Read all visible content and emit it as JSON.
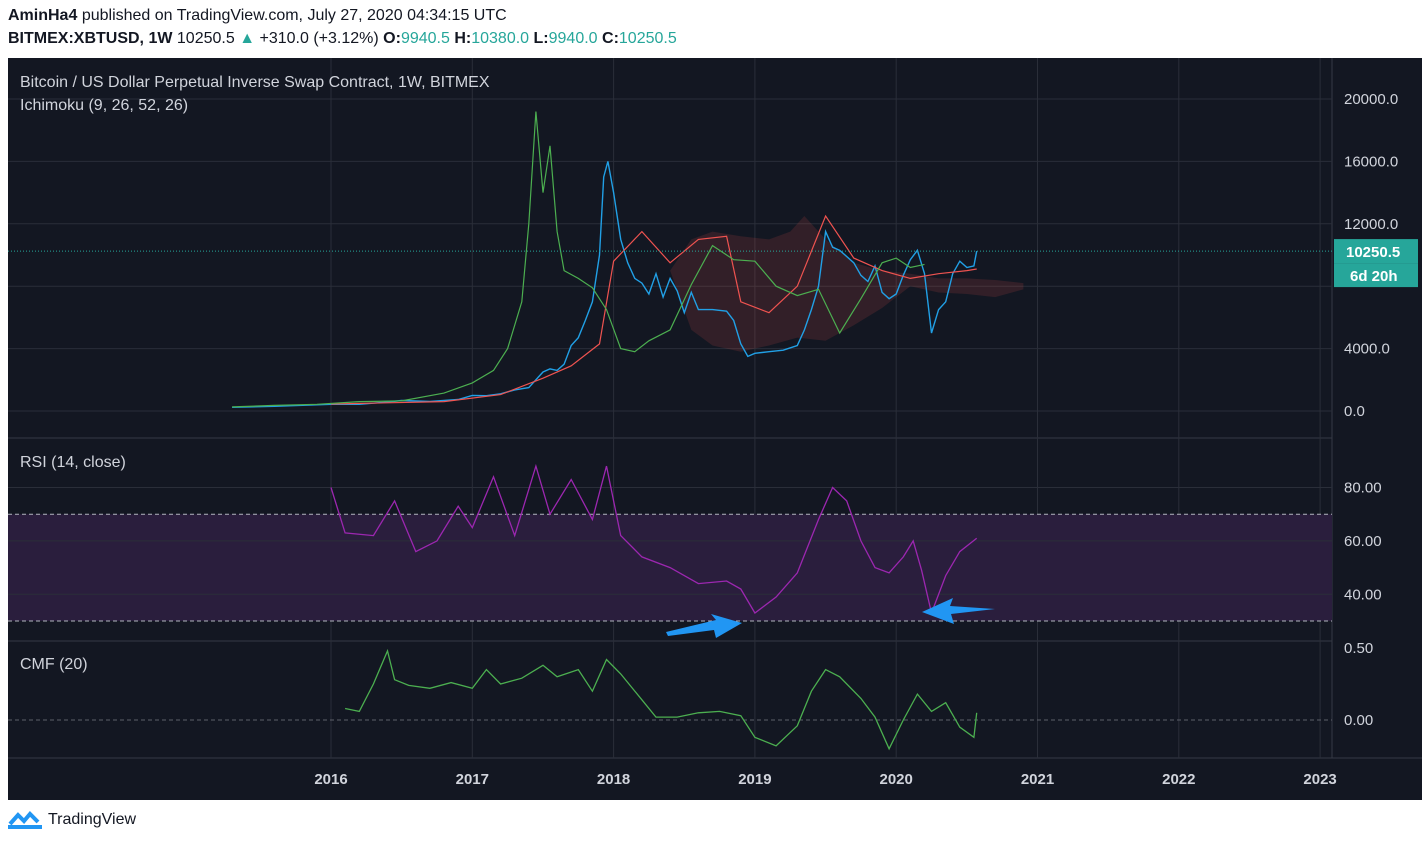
{
  "header": {
    "author": "AminHa4",
    "published": "published on TradingView.com, July 27, 2020 04:34:15 UTC",
    "symbol": "BITMEX:XBTUSD, 1W",
    "last": "10250.5",
    "change": "+310.0 (+3.12%)",
    "o_label": "O:",
    "o_val": "9940.5",
    "h_label": "H:",
    "h_val": "10380.0",
    "l_label": "L:",
    "l_val": "9940.0",
    "c_label": "C:",
    "c_val": "10250.5"
  },
  "chart": {
    "title": "Bitcoin / US Dollar Perpetual Inverse Swap Contract, 1W, BITMEX",
    "indicator": "Ichimoku (9, 26, 52, 26)",
    "price_badge": "10250.5",
    "time_badge": "6d 20h",
    "rsi_label": "RSI (14, close)",
    "cmf_label": "CMF (20)",
    "colors": {
      "bg": "#131722",
      "text": "#d1d4dc",
      "price": "#21a0e6",
      "tenkan": "#21a0e6",
      "kijun": "#ef5350",
      "chikou": "#4caf50",
      "rsi": "#9c27b0",
      "cmf": "#4caf50",
      "arrow": "#2196f3",
      "badge": "#26a69a"
    }
  },
  "chart_data": [
    {
      "type": "line",
      "name": "price",
      "x": [
        2015.3,
        2015.6,
        2015.9,
        2016.0,
        2016.2,
        2016.4,
        2016.5,
        2016.7,
        2016.9,
        2017.0,
        2017.1,
        2017.2,
        2017.3,
        2017.4,
        2017.5,
        2017.55,
        2017.6,
        2017.65,
        2017.7,
        2017.75,
        2017.8,
        2017.85,
        2017.9,
        2017.93,
        2017.96,
        2018.0,
        2018.05,
        2018.1,
        2018.15,
        2018.2,
        2018.25,
        2018.3,
        2018.35,
        2018.4,
        2018.45,
        2018.5,
        2018.55,
        2018.6,
        2018.7,
        2018.8,
        2018.85,
        2018.9,
        2018.95,
        2019.0,
        2019.1,
        2019.2,
        2019.3,
        2019.35,
        2019.4,
        2019.45,
        2019.5,
        2019.55,
        2019.6,
        2019.7,
        2019.75,
        2019.8,
        2019.85,
        2019.9,
        2019.95,
        2020.0,
        2020.05,
        2020.1,
        2020.15,
        2020.2,
        2020.25,
        2020.3,
        2020.35,
        2020.4,
        2020.45,
        2020.5,
        2020.55,
        2020.57
      ],
      "y": [
        240,
        300,
        400,
        430,
        430,
        580,
        670,
        610,
        740,
        1000,
        980,
        1100,
        1350,
        1500,
        2500,
        2700,
        2600,
        3000,
        4200,
        4700,
        5800,
        7000,
        10000,
        15000,
        16000,
        14000,
        11000,
        9500,
        8500,
        8200,
        7500,
        8800,
        7300,
        8500,
        7700,
        6300,
        7600,
        6500,
        6500,
        6400,
        5800,
        4300,
        3500,
        3700,
        3800,
        3900,
        4200,
        5200,
        6500,
        8000,
        11500,
        10500,
        10300,
        9500,
        8700,
        8300,
        9300,
        7600,
        7200,
        7500,
        8700,
        9700,
        10300,
        8800,
        5000,
        6500,
        7000,
        8800,
        9600,
        9200,
        9300,
        10250
      ],
      "ylim": [
        0,
        20000
      ]
    },
    {
      "type": "line",
      "name": "RSI",
      "x": [
        2016.0,
        2016.1,
        2016.3,
        2016.45,
        2016.6,
        2016.75,
        2016.9,
        2017.0,
        2017.15,
        2017.3,
        2017.45,
        2017.55,
        2017.7,
        2017.85,
        2017.95,
        2018.05,
        2018.2,
        2018.4,
        2018.6,
        2018.8,
        2018.9,
        2019.0,
        2019.15,
        2019.3,
        2019.45,
        2019.55,
        2019.65,
        2019.75,
        2019.85,
        2019.95,
        2020.05,
        2020.12,
        2020.18,
        2020.25,
        2020.35,
        2020.45,
        2020.57
      ],
      "y": [
        80,
        63,
        62,
        75,
        56,
        60,
        73,
        65,
        84,
        62,
        88,
        70,
        83,
        68,
        88,
        62,
        54,
        50,
        44,
        45,
        42,
        33,
        39,
        48,
        68,
        80,
        75,
        60,
        50,
        48,
        54,
        60,
        49,
        33,
        47,
        56,
        61
      ],
      "ylim": [
        26,
        93
      ],
      "ticks": [
        "80.00",
        "60.00",
        "40.00"
      ]
    },
    {
      "type": "line",
      "name": "CMF",
      "x": [
        2016.1,
        2016.2,
        2016.3,
        2016.4,
        2016.45,
        2016.55,
        2016.7,
        2016.85,
        2017.0,
        2017.1,
        2017.2,
        2017.35,
        2017.5,
        2017.6,
        2017.75,
        2017.85,
        2017.95,
        2018.05,
        2018.2,
        2018.3,
        2018.45,
        2018.6,
        2018.75,
        2018.9,
        2019.0,
        2019.15,
        2019.3,
        2019.4,
        2019.5,
        2019.6,
        2019.75,
        2019.85,
        2019.95,
        2020.05,
        2020.15,
        2020.25,
        2020.35,
        2020.45,
        2020.55,
        2020.57
      ],
      "y": [
        0.08,
        0.06,
        0.25,
        0.48,
        0.28,
        0.24,
        0.22,
        0.26,
        0.22,
        0.35,
        0.25,
        0.29,
        0.38,
        0.3,
        0.35,
        0.2,
        0.42,
        0.32,
        0.14,
        0.02,
        0.02,
        0.05,
        0.06,
        0.03,
        -0.12,
        -0.18,
        -0.04,
        0.2,
        0.35,
        0.3,
        0.15,
        0.02,
        -0.2,
        0.0,
        0.18,
        0.06,
        0.12,
        -0.05,
        -0.12,
        0.05
      ],
      "ylim": [
        -0.3,
        0.55
      ],
      "ticks": [
        "0.50",
        "0.00"
      ]
    }
  ],
  "axes": {
    "price_ticks": [
      "20000.0",
      "16000.0",
      "12000.0",
      "4000.0",
      "0.0"
    ],
    "x_ticks": [
      "2016",
      "2017",
      "2018",
      "2019",
      "2020",
      "2021",
      "2022",
      "2023"
    ]
  },
  "footer": {
    "brand": "TradingView"
  }
}
